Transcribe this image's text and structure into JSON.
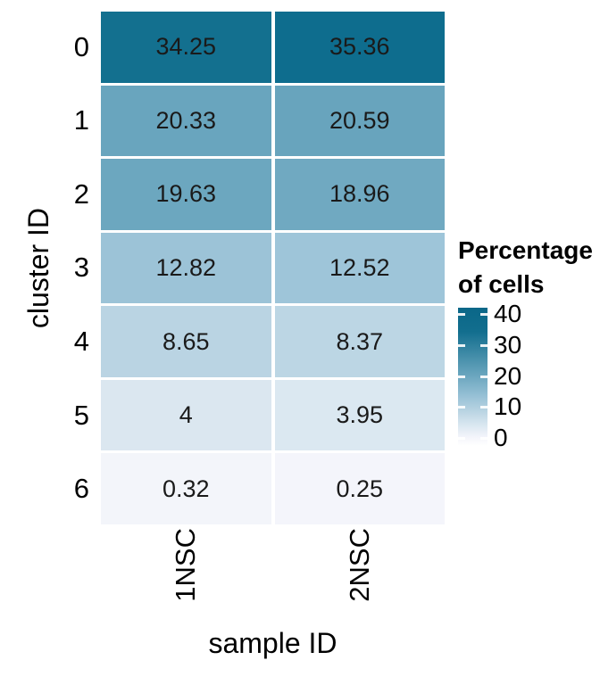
{
  "chart_data": {
    "type": "heatmap",
    "title": "",
    "xlabel": "sample ID",
    "ylabel": "cluster ID",
    "columns": [
      "1NSC",
      "2NSC"
    ],
    "rows": [
      "0",
      "1",
      "2",
      "3",
      "4",
      "5",
      "6"
    ],
    "values": [
      [
        34.25,
        35.36
      ],
      [
        20.33,
        20.59
      ],
      [
        19.63,
        18.96
      ],
      [
        12.82,
        12.52
      ],
      [
        8.65,
        8.37
      ],
      [
        4,
        3.95
      ],
      [
        0.32,
        0.25
      ]
    ],
    "cell_labels": [
      [
        "34.25",
        "35.36"
      ],
      [
        "20.33",
        "20.59"
      ],
      [
        "19.63",
        "18.96"
      ],
      [
        "12.82",
        "12.52"
      ],
      [
        "8.65",
        "8.37"
      ],
      [
        "4",
        "3.95"
      ],
      [
        "0.32",
        "0.25"
      ]
    ],
    "cell_colors": [
      [
        "#13708f",
        "#0e6d8e"
      ],
      [
        "#69a5be",
        "#68a4bd"
      ],
      [
        "#6ca7bf",
        "#70a9c1"
      ],
      [
        "#9cc3d7",
        "#9ec5d9"
      ],
      [
        "#bad4e3",
        "#bcd6e4"
      ],
      [
        "#dbe7f0",
        "#dbe8f1"
      ],
      [
        "#f3f5fa",
        "#f4f5fb"
      ]
    ],
    "grid": "off",
    "legend": {
      "position": "right",
      "title_lines": [
        "Percentage",
        "of cells"
      ],
      "value_range": [
        0,
        40
      ],
      "bar_range": [
        -2.5,
        42
      ],
      "ticks": [
        {
          "label": "40",
          "pos_pct": 4.7
        },
        {
          "label": "30",
          "pos_pct": 27.3
        },
        {
          "label": "20",
          "pos_pct": 49.9
        },
        {
          "label": "10",
          "pos_pct": 71.8
        },
        {
          "label": "0",
          "pos_pct": 94.4
        }
      ],
      "gradient_stops": [
        {
          "color": "#0a6788",
          "pos_pct": 0
        },
        {
          "color": "#126e8e",
          "pos_pct": 17.4
        },
        {
          "color": "#69a5be",
          "pos_pct": 48.7
        },
        {
          "color": "#9dc4d8",
          "pos_pct": 65.8
        },
        {
          "color": "#bbd5e3",
          "pos_pct": 75.3
        },
        {
          "color": "#dbe8f1",
          "pos_pct": 85.4
        },
        {
          "color": "#f4f5fb",
          "pos_pct": 93.7
        },
        {
          "color": "#ffffff",
          "pos_pct": 100
        }
      ]
    }
  }
}
